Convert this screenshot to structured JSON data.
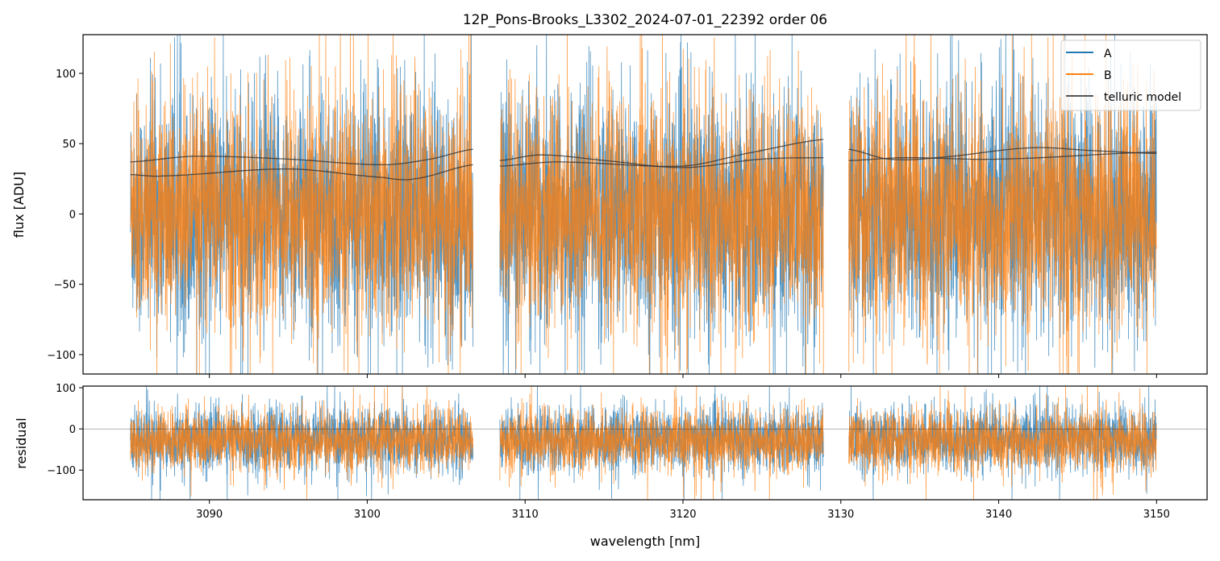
{
  "chart_data": [
    {
      "type": "line",
      "title": "12P_Pons-Brooks_L3302_2024-07-01_22392  order 06",
      "xlabel": "wavelength [nm]",
      "ylabel": "flux [ADU]",
      "xlim": [
        3082.0,
        3153.2
      ],
      "ylim": [
        -113.8,
        127.5
      ],
      "yticks": [
        -100,
        -50,
        0,
        50,
        100
      ],
      "ytick_labels": [
        "−100",
        "−50",
        "0",
        "50",
        "100"
      ],
      "legend": {
        "placement": "top-right",
        "entries": [
          "A",
          "B",
          "telluric model"
        ]
      },
      "segments": [
        [
          3085.0,
          3106.7
        ],
        [
          3108.4,
          3128.9
        ],
        [
          3130.5,
          3150.0
        ]
      ],
      "series": [
        {
          "name": "A",
          "color": "#1f77b4",
          "kind": "noisy spectrum",
          "mean": 0,
          "std": 42
        },
        {
          "name": "B",
          "color": "#ff7f0e",
          "kind": "noisy spectrum",
          "mean": 0,
          "std": 40
        },
        {
          "name": "telluric model",
          "color": "#333333",
          "curves": [
            {
              "x": [
                3085,
                3089,
                3095,
                3101,
                3104,
                3106.7
              ],
              "y": [
                37,
                41,
                39,
                35,
                39,
                46
              ]
            },
            {
              "x": [
                3085,
                3087,
                3095,
                3101,
                3103,
                3106.7
              ],
              "y": [
                28,
                27,
                32,
                26,
                25,
                35
              ]
            },
            {
              "x": [
                3108.4,
                3111,
                3115,
                3120,
                3125,
                3128.9
              ],
              "y": [
                38,
                42,
                38,
                33,
                39,
                40
              ]
            },
            {
              "x": [
                3108.4,
                3112,
                3120,
                3124,
                3128.9
              ],
              "y": [
                34,
                37,
                34,
                43,
                53
              ]
            },
            {
              "x": [
                3130.5,
                3133,
                3136,
                3142,
                3146,
                3150
              ],
              "y": [
                46,
                39,
                40,
                47,
                45,
                43
              ]
            },
            {
              "x": [
                3130.5,
                3134,
                3140,
                3150
              ],
              "y": [
                38,
                40,
                39,
                44
              ]
            }
          ]
        }
      ]
    },
    {
      "type": "line",
      "xlabel": "wavelength [nm]",
      "ylabel": "residual",
      "xlim": [
        3082.0,
        3153.2
      ],
      "ylim": [
        -172,
        104
      ],
      "xticks": [
        3090,
        3100,
        3110,
        3120,
        3130,
        3140,
        3150
      ],
      "xtick_labels": [
        "3090",
        "3100",
        "3110",
        "3120",
        "3130",
        "3140",
        "3150"
      ],
      "yticks": [
        -100,
        0,
        100
      ],
      "ytick_labels": [
        "−100",
        "0",
        "100"
      ],
      "hline": 0,
      "series": [
        {
          "name": "A",
          "color": "#1f77b4",
          "mean": -25,
          "std": 38
        },
        {
          "name": "B",
          "color": "#ff7f0e",
          "mean": -30,
          "std": 36
        }
      ]
    }
  ]
}
